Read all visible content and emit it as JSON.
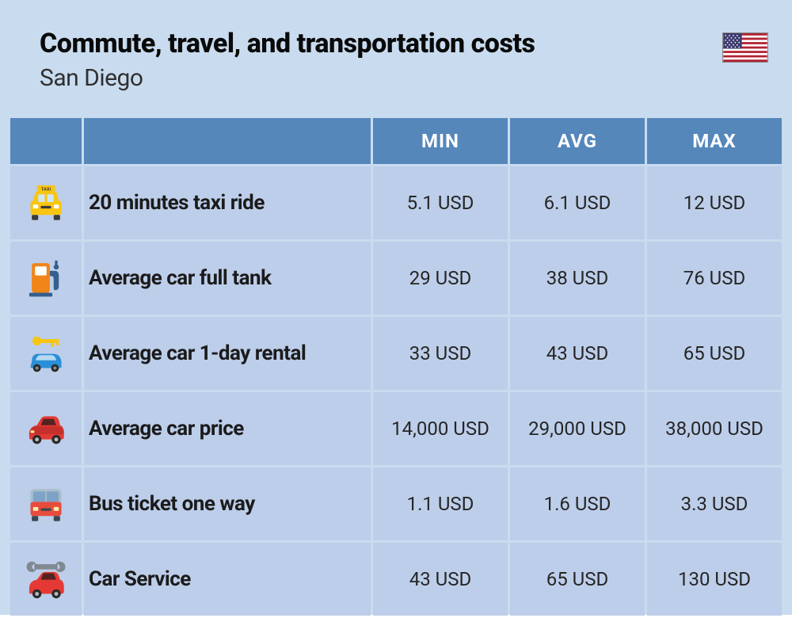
{
  "header": {
    "title": "Commute, travel, and transportation costs",
    "subtitle": "San Diego",
    "title_fontsize": 34,
    "subtitle_fontsize": 30,
    "title_color": "#0a0a0a",
    "subtitle_color": "#303030"
  },
  "flag": {
    "country": "usa",
    "stripe_red": "#b22234",
    "stripe_white": "#ffffff",
    "canton_blue": "#3c3b6e"
  },
  "colors": {
    "page_bg": "#c9dcef",
    "header_bg": "#5587bb",
    "row_bg": "#bdceea",
    "label_text": "#1b1b1b",
    "value_text": "#262626",
    "header_text": "#ffffff"
  },
  "typography": {
    "th_fontsize": 24,
    "label_fontsize": 26,
    "value_fontsize": 24
  },
  "table": {
    "columns": [
      "MIN",
      "AVG",
      "MAX"
    ],
    "rows": [
      {
        "icon": "taxi",
        "label": "20 minutes taxi ride",
        "min": "5.1 USD",
        "avg": "6.1 USD",
        "max": "12 USD"
      },
      {
        "icon": "fuel-pump",
        "label": "Average car full tank",
        "min": "29 USD",
        "avg": "38 USD",
        "max": "76 USD"
      },
      {
        "icon": "car-rental",
        "label": "Average car 1-day rental",
        "min": "33 USD",
        "avg": "43 USD",
        "max": "65 USD"
      },
      {
        "icon": "car-red",
        "label": "Average car price",
        "min": "14,000 USD",
        "avg": "29,000 USD",
        "max": "38,000 USD"
      },
      {
        "icon": "bus",
        "label": "Bus ticket one way",
        "min": "1.1 USD",
        "avg": "1.6 USD",
        "max": "3.3 USD"
      },
      {
        "icon": "car-service",
        "label": "Car Service",
        "min": "43 USD",
        "avg": "65 USD",
        "max": "130 USD"
      }
    ]
  },
  "icons": {
    "taxi": {
      "primary": "#f9c510",
      "secondary": "#3b3b3b",
      "light": "#cfe6f7"
    },
    "fuel-pump": {
      "primary": "#f08519",
      "secondary": "#355f8d",
      "accent": "#ffffff"
    },
    "car-rental": {
      "primary": "#2a8fd8",
      "secondary": "#f9c510"
    },
    "car-red": {
      "primary": "#e53935",
      "secondary": "#8a1f1d",
      "glass": "#552222"
    },
    "bus": {
      "primary": "#e84c3d",
      "secondary": "#a7becc",
      "glass": "#7ea3c7",
      "dark": "#384a52"
    },
    "car-service": {
      "primary": "#e53935",
      "secondary": "#808891"
    }
  }
}
